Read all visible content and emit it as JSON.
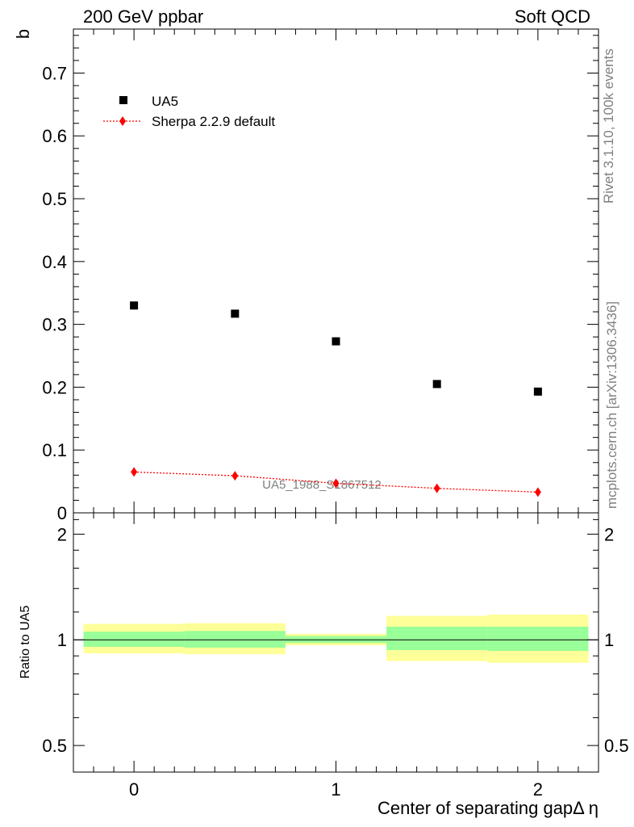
{
  "header": {
    "left": "200 GeV ppbar",
    "right": "Soft QCD"
  },
  "side_text": {
    "rivet": "Rivet 3.1.10,  100k events",
    "mcplots": "mcplots.cern.ch [arXiv:1306.3436]"
  },
  "watermark": "UA5_1988_S1867512",
  "chart_data": [
    {
      "type": "scatter",
      "panel": "main",
      "ylabel": "b",
      "xlim": [
        -0.3,
        2.3
      ],
      "ylim": [
        0,
        0.77
      ],
      "yticks": [
        0,
        0.1,
        0.2,
        0.3,
        0.4,
        0.5,
        0.6,
        0.7
      ],
      "ytick_labels": [
        "0",
        "0.1",
        "0.2",
        "0.3",
        "0.4",
        "0.5",
        "0.6",
        "0.7"
      ],
      "legend_position": "top-left",
      "series": [
        {
          "name": "UA5",
          "marker": "square",
          "color": "#000000",
          "x": [
            0,
            0.5,
            1,
            1.5,
            2
          ],
          "y": [
            0.33,
            0.317,
            0.273,
            0.205,
            0.193
          ]
        },
        {
          "name": "Sherpa 2.2.9 default",
          "marker": "diamond",
          "line": "dotted",
          "color": "#ff0000",
          "x": [
            0,
            0.5,
            1,
            1.5,
            2
          ],
          "y": [
            0.065,
            0.059,
            0.047,
            0.039,
            0.033
          ]
        }
      ]
    },
    {
      "type": "ratio",
      "panel": "ratio",
      "ylabel": "Ratio to UA5",
      "xlabel": "Center of separating gapΔ η",
      "xlim": [
        -0.3,
        2.3
      ],
      "ylim": [
        0.42,
        2.3
      ],
      "log_y": true,
      "xticks": [
        0,
        1,
        2
      ],
      "xtick_labels": [
        "0",
        "1",
        "2"
      ],
      "yticks": [
        0.5,
        1,
        2
      ],
      "ytick_labels": [
        "0.5",
        "1",
        "2"
      ],
      "reference": 1,
      "bins": [
        {
          "x_low": -0.25,
          "x_high": 0.25,
          "stat_low": 0.955,
          "stat_high": 1.055,
          "tot_low": 0.915,
          "tot_high": 1.11
        },
        {
          "x_low": 0.25,
          "x_high": 0.75,
          "stat_low": 0.95,
          "stat_high": 1.06,
          "tot_low": 0.91,
          "tot_high": 1.115
        },
        {
          "x_low": 0.75,
          "x_high": 1.25,
          "stat_low": 0.98,
          "stat_high": 1.025,
          "tot_low": 0.965,
          "tot_high": 1.04
        },
        {
          "x_low": 1.25,
          "x_high": 1.75,
          "stat_low": 0.935,
          "stat_high": 1.09,
          "tot_low": 0.87,
          "tot_high": 1.17
        },
        {
          "x_low": 1.75,
          "x_high": 2.25,
          "stat_low": 0.93,
          "stat_high": 1.09,
          "tot_low": 0.86,
          "tot_high": 1.18
        }
      ]
    }
  ],
  "colors": {
    "stat_band": "#99ff99",
    "total_band": "#ffff99",
    "data": "#000000",
    "mc": "#ff0000",
    "watermark": "#808080"
  }
}
